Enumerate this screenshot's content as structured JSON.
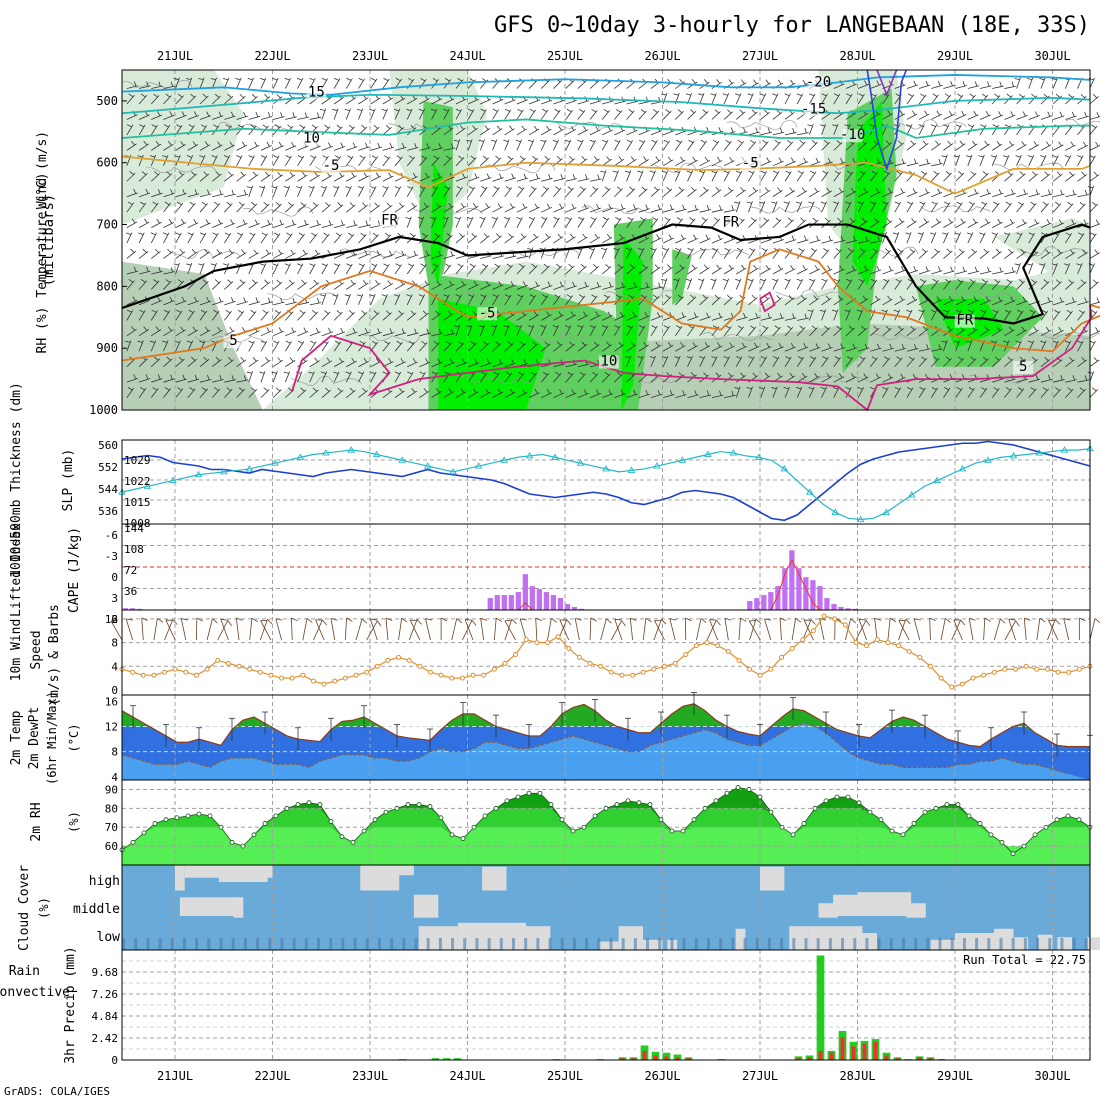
{
  "title": "GFS 0~10day 3-hourly for LANGEBAAN (18E, 33S)",
  "footer": "GrADS: COLA/IGES",
  "colors": {
    "frame": "#000000",
    "grid": "#a0a0a0",
    "rh_light": "#d8ead8",
    "rh_mid": "#b7cfb7",
    "rh_green": "#5fd05f",
    "rh_bright": "#00ee00",
    "slp": "#1a3fd0",
    "thickness": "#22b8c8",
    "cape": "#c070f0",
    "lifted": "#ee3030",
    "wind": "#e09030",
    "temp_fill": "#22aa22",
    "temp_band": "#3070e0",
    "dew_band": "#4aa0f0",
    "rh2m_dark": "#10a010",
    "rh2m_mid": "#30d030",
    "rh2m_light": "#55ee55",
    "cloud_bg": "#6aaad8",
    "cloud_fill": "#dcdcdc",
    "precip_total": "#22cc22",
    "precip_conv": "#ee3030"
  },
  "chart_data": [
    {
      "panel": "upper-air",
      "type": "heatmap",
      "xlabel_days": [
        "21JUL",
        "22JUL",
        "23JUL",
        "24JUL",
        "25JUL",
        "26JUL",
        "27JUL",
        "28JUL",
        "29JUL",
        "30JUL"
      ],
      "ylabel_left": [
        "RH (%)",
        "Temperature (°C)",
        "Wind (m/s)"
      ],
      "ylabel_right": "(millibars)",
      "yticks": [
        "500",
        "600",
        "700",
        "800",
        "900",
        "1000"
      ],
      "ylim": [
        450,
        1000
      ],
      "contour_labels": [
        {
          "text": "15",
          "t": 1.45,
          "p": 493
        },
        {
          "text": "10",
          "t": 1.4,
          "p": 567
        },
        {
          "text": "-5",
          "t": 1.6,
          "p": 612
        },
        {
          "text": "FR",
          "t": 2.2,
          "p": 700
        },
        {
          "text": "5",
          "t": 0.6,
          "p": 895
        },
        {
          "text": "-5",
          "t": 3.2,
          "p": 850
        },
        {
          "text": "10",
          "t": 4.45,
          "p": 928
        },
        {
          "text": "-20",
          "t": 6.6,
          "p": 477
        },
        {
          "text": "-15",
          "t": 6.55,
          "p": 520
        },
        {
          "text": "-10",
          "t": 6.95,
          "p": 562
        },
        {
          "text": "-5",
          "t": 5.9,
          "p": 608
        },
        {
          "text": "FR",
          "t": 5.7,
          "p": 703
        },
        {
          "text": "FR",
          "t": 8.1,
          "p": 862
        },
        {
          "text": "5",
          "t": 8.7,
          "p": 937
        }
      ]
    },
    {
      "panel": "slp-thickness",
      "type": "line",
      "ylabel_left": "1000~500mb Thickness (dm)",
      "ylabel_right": "SLP (mb)",
      "yticks_left": [
        "560",
        "552",
        "544",
        "536"
      ],
      "yticks_right": [
        "1029",
        "1022",
        "1015",
        "1008"
      ],
      "series": [
        {
          "name": "SLP (mb)",
          "values": [
            1026,
            1026.5,
            1027,
            1026.5,
            1025,
            1024.5,
            1024,
            1023,
            1023,
            1022.5,
            1022,
            1023,
            1022.5,
            1022,
            1021.5,
            1021,
            1022,
            1022.5,
            1023,
            1022.5,
            1022,
            1021.5,
            1021,
            1022,
            1023,
            1022,
            1021.5,
            1021,
            1020.5,
            1020,
            1019,
            1017.5,
            1016,
            1015.5,
            1015,
            1015.5,
            1016,
            1016.5,
            1016,
            1015,
            1013.5,
            1013,
            1014,
            1015,
            1016.5,
            1017,
            1016.5,
            1016,
            1015,
            1013,
            1011,
            1009,
            1008.5,
            1010,
            1013,
            1016,
            1019,
            1022,
            1024.5,
            1026,
            1027,
            1028,
            1028.5,
            1029,
            1029.5,
            1030,
            1030.5,
            1030.5,
            1031,
            1030.5,
            1030,
            1029,
            1028,
            1027,
            1026,
            1025,
            1024
          ]
        },
        {
          "name": "1000~500mb Thickness (dm)",
          "values": [
            544,
            545,
            546,
            547,
            548,
            549,
            550,
            550.5,
            551,
            551.5,
            552,
            553,
            554,
            555,
            556,
            557,
            557.5,
            558,
            558.5,
            558,
            557,
            556,
            555,
            554,
            553,
            552,
            551,
            552,
            553,
            554,
            555,
            556,
            556.5,
            557,
            556,
            555,
            554,
            553,
            552,
            551,
            551.5,
            552,
            553,
            554,
            555,
            556,
            557,
            558,
            557.5,
            556.5,
            556,
            555,
            552,
            548,
            544,
            540,
            537,
            535,
            534.5,
            535,
            537,
            540,
            543,
            546,
            548,
            550,
            552,
            554,
            555,
            556,
            556.5,
            557,
            557.5,
            558,
            558.5,
            558.5,
            559
          ]
        }
      ]
    },
    {
      "panel": "cape-li",
      "type": "bar",
      "ylabel_left": "Lifted Index",
      "ylabel_right": "CAPE (J/kg)",
      "yticks_left": [
        "-6",
        "-3",
        "0",
        "3",
        "6"
      ],
      "yticks_right": [
        "144",
        "108",
        "72",
        "36"
      ],
      "cape_values": [
        3,
        3,
        2,
        0,
        0,
        0,
        0,
        0,
        0,
        0,
        0,
        0,
        0,
        0,
        0,
        0,
        0,
        0,
        0,
        0,
        0,
        0,
        0,
        0,
        0,
        0,
        0,
        0,
        0,
        0,
        0,
        0,
        0,
        0,
        0,
        0,
        0,
        0,
        0,
        0,
        0,
        0,
        0,
        0,
        0,
        0,
        0,
        0,
        0,
        0,
        0,
        0,
        20,
        25,
        25,
        25,
        30,
        60,
        40,
        35,
        30,
        25,
        20,
        10,
        5,
        2,
        0,
        0,
        0,
        0,
        0,
        0,
        0,
        0,
        0,
        0,
        0,
        0,
        0,
        0,
        0,
        0,
        0,
        0,
        0,
        0,
        0,
        0,
        0,
        15,
        20,
        25,
        30,
        40,
        70,
        100,
        70,
        55,
        50,
        40,
        20,
        10,
        5,
        3,
        2,
        0,
        0,
        0,
        0,
        0,
        0,
        0,
        0,
        0,
        0,
        0,
        0,
        0,
        0,
        0,
        0,
        0,
        0,
        0,
        0,
        0,
        0,
        0,
        0,
        0,
        0,
        0,
        0,
        0,
        0,
        0,
        0,
        0
      ],
      "li_values": [
        6,
        6,
        6,
        6,
        6,
        6,
        6,
        6,
        6,
        6,
        6,
        6,
        6,
        6,
        6,
        6,
        6,
        6,
        6,
        6,
        6,
        6,
        6,
        6,
        6,
        6,
        6,
        6,
        6,
        6,
        6,
        6,
        6,
        6,
        6,
        6,
        6,
        6,
        6,
        6,
        6,
        6,
        6,
        6,
        6,
        6,
        6,
        6,
        6,
        6,
        6,
        6,
        6,
        6,
        6,
        6,
        6,
        5,
        6,
        6,
        6,
        6,
        6,
        6,
        6,
        6,
        6,
        6,
        6,
        6,
        6,
        6,
        6,
        6,
        6,
        6,
        6,
        6,
        6,
        6,
        6,
        6,
        6,
        6,
        6,
        6,
        6,
        6,
        6,
        6,
        6,
        6,
        6,
        4,
        1,
        -1,
        1,
        3,
        5,
        6,
        6,
        6,
        6,
        6,
        6,
        6,
        6,
        6,
        6,
        6,
        6,
        6,
        6,
        6,
        6,
        6,
        6,
        6,
        6,
        6,
        6,
        6,
        6,
        6,
        6,
        6,
        6,
        6,
        6,
        6,
        6,
        6,
        6,
        6,
        6,
        6,
        6,
        6
      ]
    },
    {
      "panel": "wind10m",
      "type": "line",
      "ylabel": "10m Wind Speed (m/s) & Barbs",
      "yticks": [
        "12",
        "8",
        "4",
        "0"
      ],
      "series": [
        {
          "name": "Speed",
          "values": [
            3.5,
            3,
            2.5,
            2.5,
            3,
            3.5,
            3,
            2.5,
            3.5,
            5,
            4.5,
            4,
            3.5,
            3,
            2.5,
            2,
            2,
            2.5,
            1.5,
            1,
            1.5,
            2,
            2.5,
            3,
            4,
            5,
            5.5,
            5,
            4,
            3,
            2.5,
            2,
            2,
            2.5,
            2.5,
            3.5,
            4.5,
            6,
            8.5,
            8,
            8,
            9,
            7,
            5.5,
            4.5,
            4,
            3,
            2.5,
            2.5,
            3,
            3.5,
            4,
            4.5,
            6,
            7.5,
            8,
            7.5,
            6.5,
            5,
            3.5,
            2.5,
            3.5,
            5.5,
            7,
            8.5,
            10,
            12.5,
            12,
            11,
            8,
            7.5,
            8.5,
            8,
            7.5,
            6.5,
            5.5,
            4,
            2,
            0.5,
            1,
            2,
            2.5,
            3,
            3.5,
            3.5,
            4,
            3.5,
            3.5,
            3,
            3,
            3.5,
            4
          ]
        }
      ]
    },
    {
      "panel": "temp2m",
      "type": "area",
      "ylabel": "2m Temp / 2m DewPt (6hr Min/Max) (°C)",
      "yticks": [
        "16",
        "12",
        "8",
        "4"
      ],
      "series": [
        {
          "name": "2m Temp",
          "values": [
            14.5,
            13.5,
            12.5,
            11.5,
            10.5,
            9.5,
            9.5,
            10,
            9.5,
            9,
            11.5,
            13,
            13.5,
            12.5,
            11.5,
            10.5,
            10,
            9.8,
            9.6,
            11.5,
            12.8,
            13,
            13.5,
            12.5,
            11.5,
            10.5,
            10.2,
            10,
            9.8,
            11.5,
            13,
            14,
            14,
            13,
            12,
            11.5,
            11,
            10.5,
            10.5,
            12,
            14,
            15,
            15.5,
            14.5,
            13,
            12,
            11.5,
            11,
            11,
            12.5,
            14,
            15.2,
            15.6,
            14.5,
            13,
            12,
            11.2,
            10.8,
            10.5,
            12,
            13.5,
            14.8,
            14.5,
            13.5,
            12.5,
            11.5,
            11,
            10.5,
            10.2,
            11.5,
            12.8,
            13.5,
            13,
            12,
            11,
            10,
            9.5,
            9,
            8.8,
            10,
            11,
            12,
            12.5,
            11,
            10,
            9,
            8.8,
            8.8,
            8.8
          ]
        },
        {
          "name": "2m DewPt",
          "values": [
            7.5,
            7,
            6.5,
            6,
            6,
            6,
            6.5,
            6,
            5.5,
            6.5,
            7,
            7,
            7,
            6.5,
            6,
            6,
            6,
            5.5,
            6.5,
            7,
            7.5,
            7.5,
            7.5,
            7,
            7,
            6.5,
            6.5,
            7,
            8,
            8.5,
            8,
            8,
            8.5,
            9.5,
            9.5,
            9,
            8.5,
            8.5,
            9,
            9.5,
            10,
            10.5,
            10,
            9.5,
            9,
            8.5,
            8,
            8,
            9,
            9.5,
            10,
            10.5,
            11,
            11.5,
            11,
            10,
            9.5,
            9,
            9,
            10,
            11,
            12,
            12.5,
            12,
            11,
            9.5,
            8,
            7,
            6.5,
            6,
            6,
            5.5,
            5.5,
            5.5,
            5.5,
            5.5,
            6,
            6,
            6.5,
            6.5,
            7,
            6.5,
            6,
            6,
            5.5,
            5,
            4.5
          ]
        }
      ]
    },
    {
      "panel": "rh2m",
      "type": "area",
      "ylabel": "2m RH (%)",
      "yticks": [
        "90",
        "80",
        "70",
        "60"
      ],
      "series": [
        {
          "name": "2m RH",
          "values": [
            58,
            62,
            67,
            72,
            74,
            75,
            76,
            77,
            76,
            70,
            62,
            60,
            66,
            72,
            76,
            80,
            82,
            83,
            82,
            73,
            65,
            62,
            68,
            74,
            78,
            80,
            82,
            82,
            81,
            75,
            66,
            64,
            70,
            76,
            80,
            84,
            86,
            88,
            88,
            82,
            74,
            68,
            70,
            76,
            80,
            82,
            84,
            83,
            82,
            74,
            68,
            68,
            74,
            80,
            84,
            88,
            91,
            90,
            86,
            78,
            70,
            66,
            72,
            80,
            84,
            86,
            86,
            83,
            78,
            74,
            68,
            66,
            72,
            78,
            80,
            82,
            82,
            76,
            72,
            66,
            62,
            56,
            60,
            66,
            70,
            74,
            76,
            74,
            70
          ]
        }
      ]
    },
    {
      "panel": "cloud",
      "type": "area",
      "ylabel": "Cloud Cover (%)",
      "levels": [
        "high",
        "middle",
        "low"
      ]
    },
    {
      "panel": "precip",
      "type": "bar",
      "ylabel": "3hr Precip (mm)",
      "ylabel_left": [
        "Total / Rain",
        "Convective"
      ],
      "yticks": [
        "9.68",
        "7.26",
        "4.84",
        "2.42",
        "0"
      ],
      "ylim": [
        0,
        12.1
      ],
      "annotation": "Run Total = 22.75",
      "total_values": [
        0,
        0,
        0,
        0,
        0,
        0,
        0,
        0,
        0,
        0,
        0,
        0,
        0,
        0,
        0,
        0,
        0,
        0,
        0,
        0,
        0,
        0,
        0,
        0,
        0,
        0.1,
        0,
        0,
        0.2,
        0.2,
        0.2,
        0,
        0,
        0,
        0,
        0,
        0,
        0,
        0,
        0.1,
        0,
        0,
        0,
        0.1,
        0,
        0.3,
        0.3,
        1.6,
        0.9,
        0.8,
        0.6,
        0.3,
        0,
        0,
        0.1,
        0,
        0,
        0,
        0,
        0,
        0,
        0.4,
        0.5,
        11.5,
        1.0,
        3.2,
        2.0,
        2.1,
        2.3,
        0.8,
        0.3,
        0.1,
        0.4,
        0.3,
        0.1,
        0,
        0,
        0,
        0,
        0,
        0,
        0,
        0,
        0,
        0,
        0,
        0,
        0
      ],
      "conv_values": [
        0,
        0,
        0,
        0,
        0,
        0,
        0,
        0,
        0,
        0,
        0,
        0,
        0,
        0,
        0,
        0,
        0,
        0,
        0,
        0,
        0,
        0,
        0,
        0,
        0,
        0,
        0,
        0,
        0,
        0,
        0,
        0,
        0,
        0,
        0,
        0,
        0,
        0,
        0,
        0,
        0,
        0,
        0,
        0,
        0,
        0.2,
        0.2,
        1.0,
        0.5,
        0.4,
        0.3,
        0.2,
        0,
        0,
        0,
        0,
        0,
        0,
        0,
        0,
        0,
        0.2,
        0.3,
        1.0,
        0.8,
        2.5,
        1.5,
        1.8,
        2.0,
        0.5,
        0.2,
        0,
        0.3,
        0.2,
        0.1,
        0,
        0,
        0,
        0,
        0,
        0,
        0,
        0,
        0,
        0,
        0,
        0,
        0
      ]
    }
  ]
}
